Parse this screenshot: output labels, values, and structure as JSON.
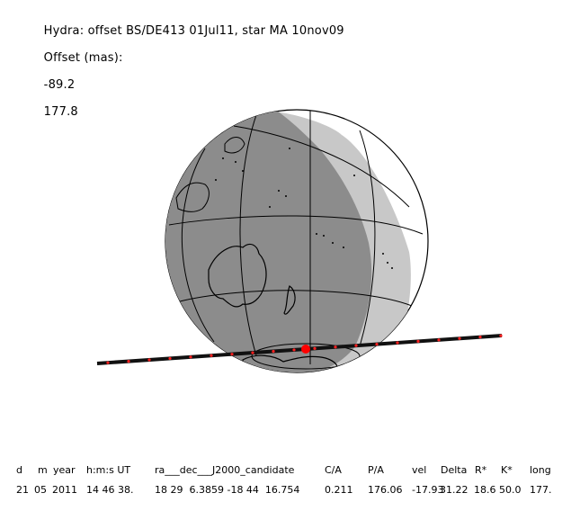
{
  "header": {
    "title": "Hydra: offset BS/DE413 01Jul11, star MA 10nov09",
    "offset_label": "Offset (mas):",
    "offset_x": "-89.2",
    "offset_y": "177.8"
  },
  "table": {
    "headers": [
      "d",
      "m",
      "year",
      "h:m:s UT",
      "ra___dec___J2000_candidate",
      "C/A",
      "P/A",
      "vel",
      "Delta",
      "R*",
      "K*",
      "long"
    ],
    "values": [
      "21",
      "05",
      "2011",
      "14 46 38.",
      "18 29  6.3859 -18 44  16.754",
      "0.211",
      "176.06",
      "-17.93",
      "31.22",
      "18.6",
      "50.0",
      "177."
    ]
  },
  "colors": {
    "night": "#8c8c8c",
    "twilight": "#c8c8c8",
    "day": "#ffffff",
    "track": "#111111",
    "track_marks": "#ff2020"
  },
  "icons": {
    "globe": "earth-globe-icon",
    "event_point": "red-dot-icon"
  }
}
